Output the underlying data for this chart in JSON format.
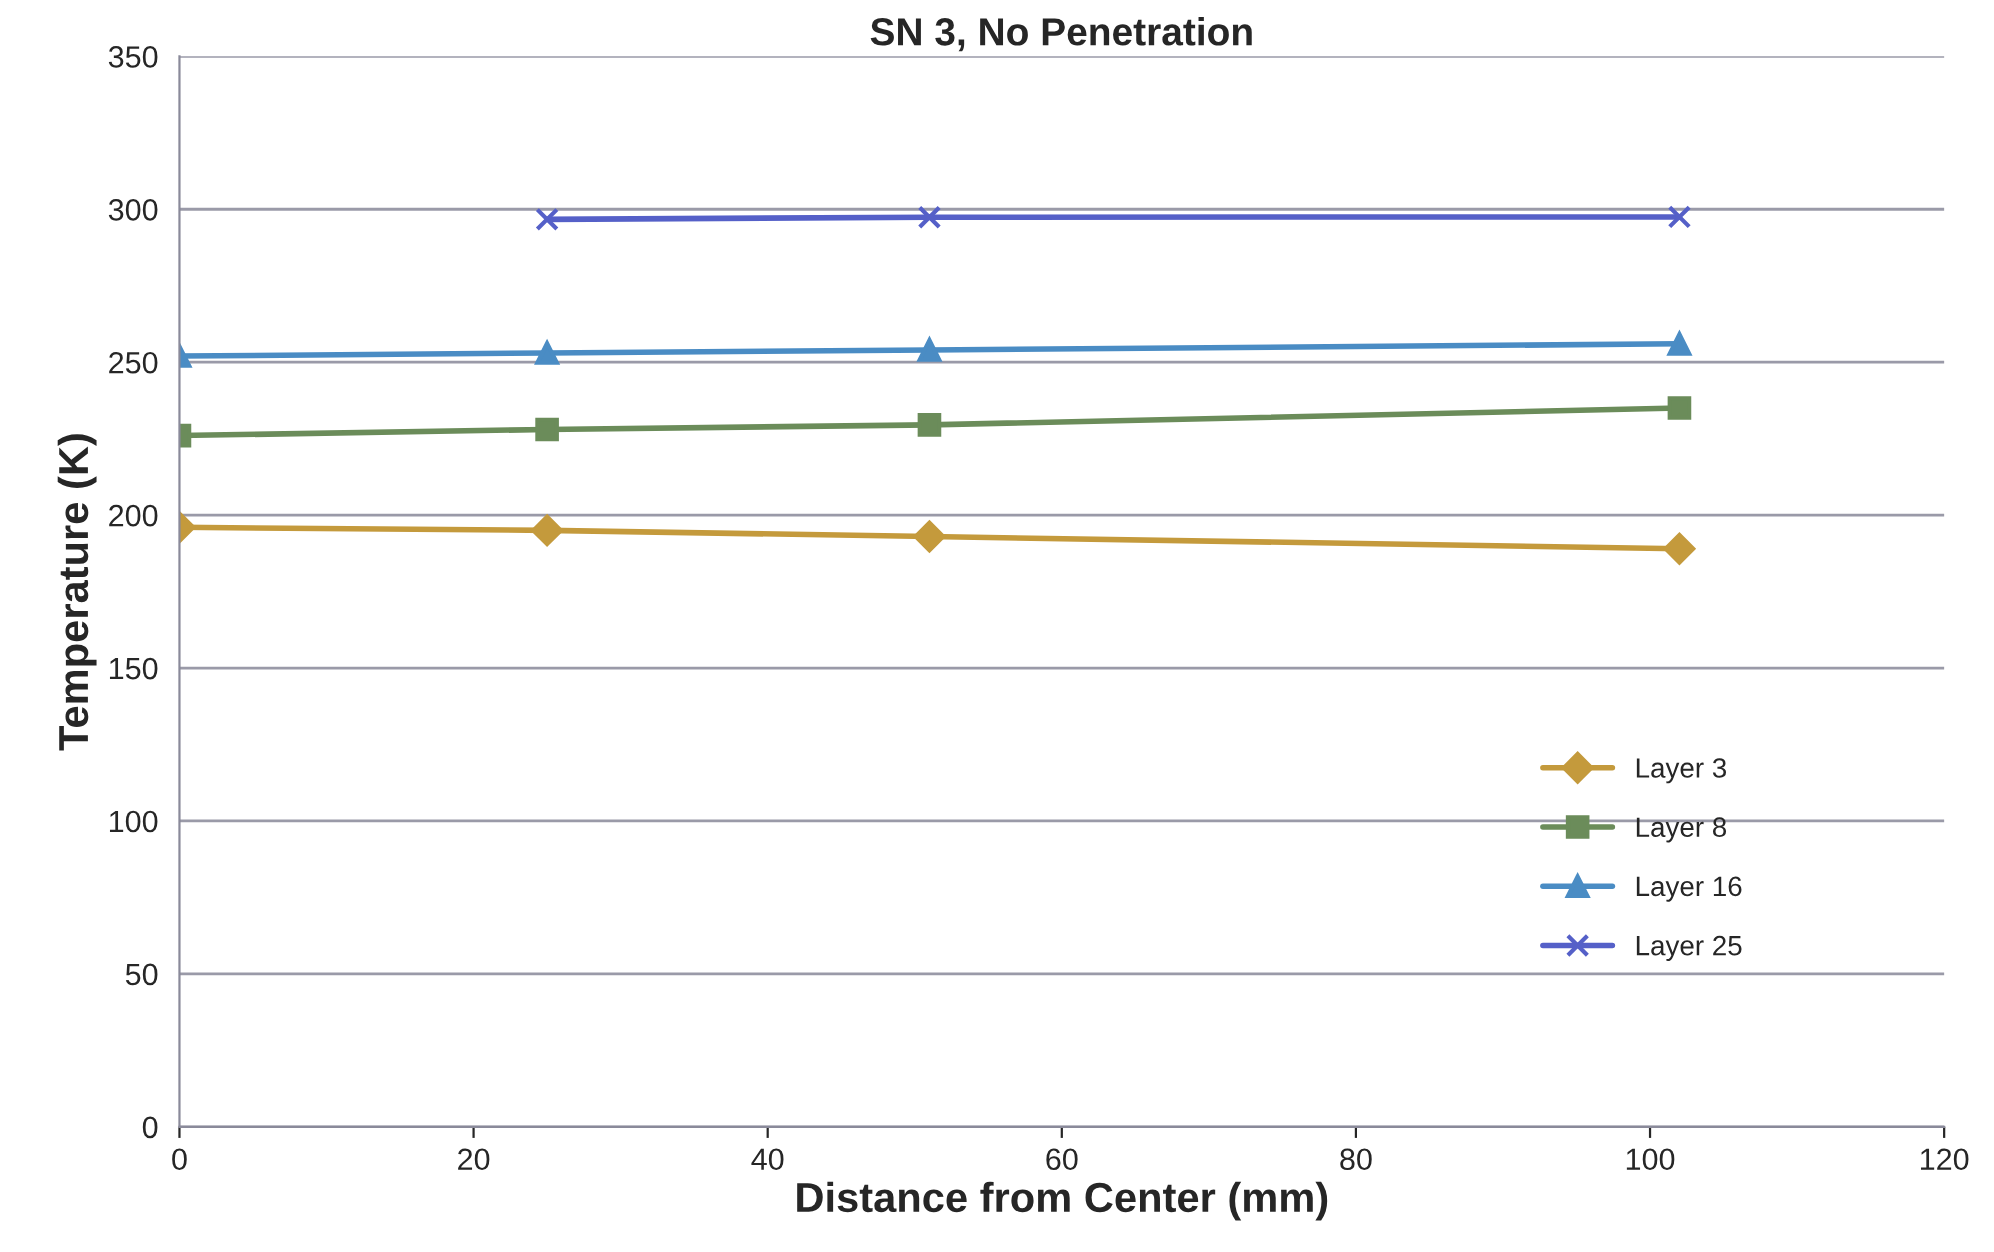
{
  "chart_data": {
    "type": "line",
    "title": "SN 3, No Penetration",
    "xlabel": "Distance from Center (mm)",
    "ylabel": "Temperature (K)",
    "xlim": [
      0,
      120
    ],
    "xticks": [
      0,
      20,
      40,
      60,
      80,
      100,
      120
    ],
    "ylim": [
      0,
      350
    ],
    "yticks": [
      0,
      50,
      100,
      150,
      200,
      250,
      300,
      350
    ],
    "grid": "y",
    "legend": "right",
    "line_style": "solid",
    "series": [
      {
        "name": "Layer 3",
        "color": "#c49a3c",
        "marker": "diamond",
        "x": [
          0,
          25,
          51,
          102
        ],
        "values": [
          196,
          195,
          193,
          189
        ]
      },
      {
        "name": "Layer 8",
        "color": "#6b8c5a",
        "marker": "square",
        "x": [
          0,
          25,
          51,
          102
        ],
        "values": [
          226,
          228,
          229.5,
          235
        ]
      },
      {
        "name": "Layer 16",
        "color": "#4a8cc4",
        "marker": "triangle",
        "x": [
          0,
          25,
          51,
          102
        ],
        "values": [
          252,
          253,
          254,
          256
        ]
      },
      {
        "name": "Layer 25",
        "color": "#5560c8",
        "marker": "cross",
        "x": [
          25,
          51,
          102
        ],
        "values": [
          296.7,
          297.4,
          297.5
        ]
      }
    ]
  }
}
